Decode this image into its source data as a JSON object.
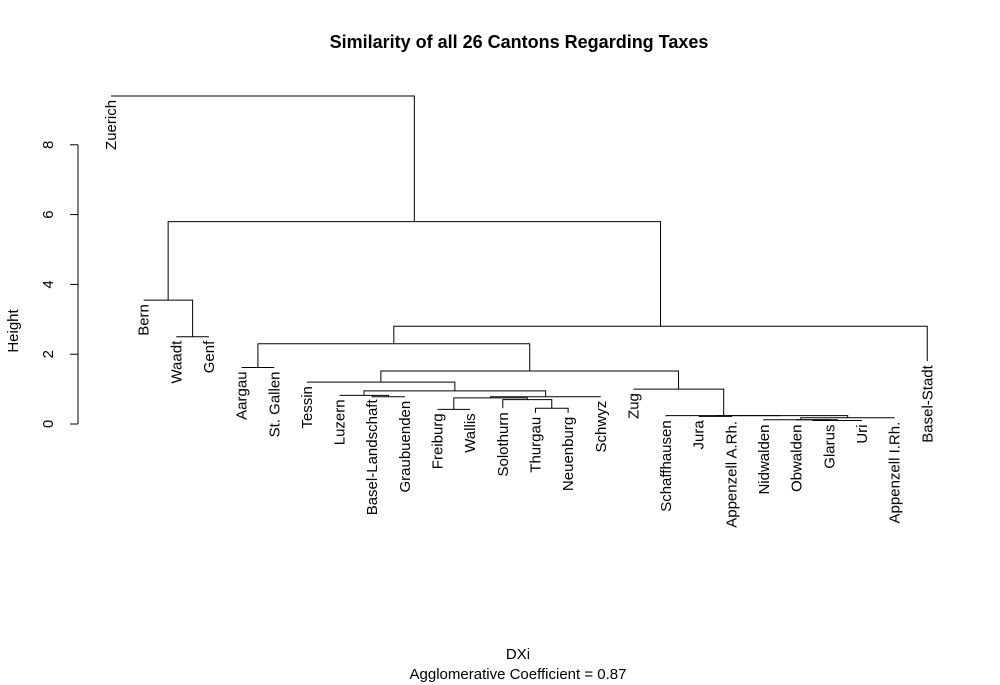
{
  "chart_data": {
    "type": "dendrogram",
    "title": "Similarity of all 26 Cantons Regarding Taxes",
    "ylabel": "Height",
    "xlabel": "DXi",
    "subtitle": "Agglomerative Coefficient =  0.87",
    "yticks": [
      0,
      2,
      4,
      6,
      8
    ],
    "ylim": [
      0,
      9.4
    ],
    "leaves": [
      {
        "label": "Zuerich",
        "height": 9.4
      },
      {
        "label": "Bern",
        "height": 3.55
      },
      {
        "label": "Waadt",
        "height": 2.5
      },
      {
        "label": "Genf",
        "height": 2.5
      },
      {
        "label": "Aargau",
        "height": 1.62
      },
      {
        "label": "St. Gallen",
        "height": 1.62
      },
      {
        "label": "Tessin",
        "height": 1.2
      },
      {
        "label": "Luzern",
        "height": 0.82
      },
      {
        "label": "Basel-Landschaft",
        "height": 0.82
      },
      {
        "label": "Graubuenden",
        "height": 0.78
      },
      {
        "label": "Freiburg",
        "height": 0.42
      },
      {
        "label": "Wallis",
        "height": 0.42
      },
      {
        "label": "Solothurn",
        "height": 0.45
      },
      {
        "label": "Thurgau",
        "height": 0.32
      },
      {
        "label": "Neuenburg",
        "height": 0.32
      },
      {
        "label": "Schwyz",
        "height": 0.78
      },
      {
        "label": "Zug",
        "height": 1.0
      },
      {
        "label": "Schaffhausen",
        "height": 0.22
      },
      {
        "label": "Jura",
        "height": 0.22
      },
      {
        "label": "Appenzell A.Rh.",
        "height": 0.2
      },
      {
        "label": "Nidwalden",
        "height": 0.1
      },
      {
        "label": "Obwalden",
        "height": 0.1
      },
      {
        "label": "Glarus",
        "height": 0.1
      },
      {
        "label": "Uri",
        "height": 0.1
      },
      {
        "label": "Appenzell I.Rh.",
        "height": 0.18
      },
      {
        "label": "Basel-Stadt",
        "height": 1.8
      }
    ],
    "merges": [
      {
        "left": 21,
        "right": 22,
        "height": 0.12
      },
      {
        "left": -1,
        "right": 23,
        "height": 0.1
      },
      {
        "left": 20,
        "right": -2,
        "height": 0.12
      },
      {
        "left": -3,
        "right": 24,
        "height": 0.18
      },
      {
        "left": 18,
        "right": 19,
        "height": 0.22
      },
      {
        "left": -5,
        "right": -4,
        "height": 0.24
      },
      {
        "left": 17,
        "right": -6,
        "height": 0.24
      },
      {
        "left": 13,
        "right": 14,
        "height": 0.45
      },
      {
        "left": 12,
        "right": -8,
        "height": 0.7
      },
      {
        "left": 10,
        "right": 11,
        "height": 0.42
      },
      {
        "left": -10,
        "right": -9,
        "height": 0.75
      },
      {
        "left": -11,
        "right": 15,
        "height": 0.78
      },
      {
        "left": 8,
        "right": 9,
        "height": 0.78
      },
      {
        "left": 7,
        "right": -13,
        "height": 0.82
      },
      {
        "left": -14,
        "right": -12,
        "height": 0.95
      },
      {
        "left": 16,
        "right": -7,
        "height": 1.0
      },
      {
        "left": 6,
        "right": -15,
        "height": 1.2
      },
      {
        "left": -17,
        "right": -16,
        "height": 1.52
      },
      {
        "left": 4,
        "right": 5,
        "height": 1.62
      },
      {
        "left": -19,
        "right": -18,
        "height": 2.3
      },
      {
        "left": 2,
        "right": 3,
        "height": 2.5
      },
      {
        "left": -20,
        "right": 25,
        "height": 2.8
      },
      {
        "left": 1,
        "right": -21,
        "height": 3.55
      },
      {
        "left": -23,
        "right": -22,
        "height": 5.8
      },
      {
        "left": 0,
        "right": -24,
        "height": 9.4
      }
    ]
  }
}
